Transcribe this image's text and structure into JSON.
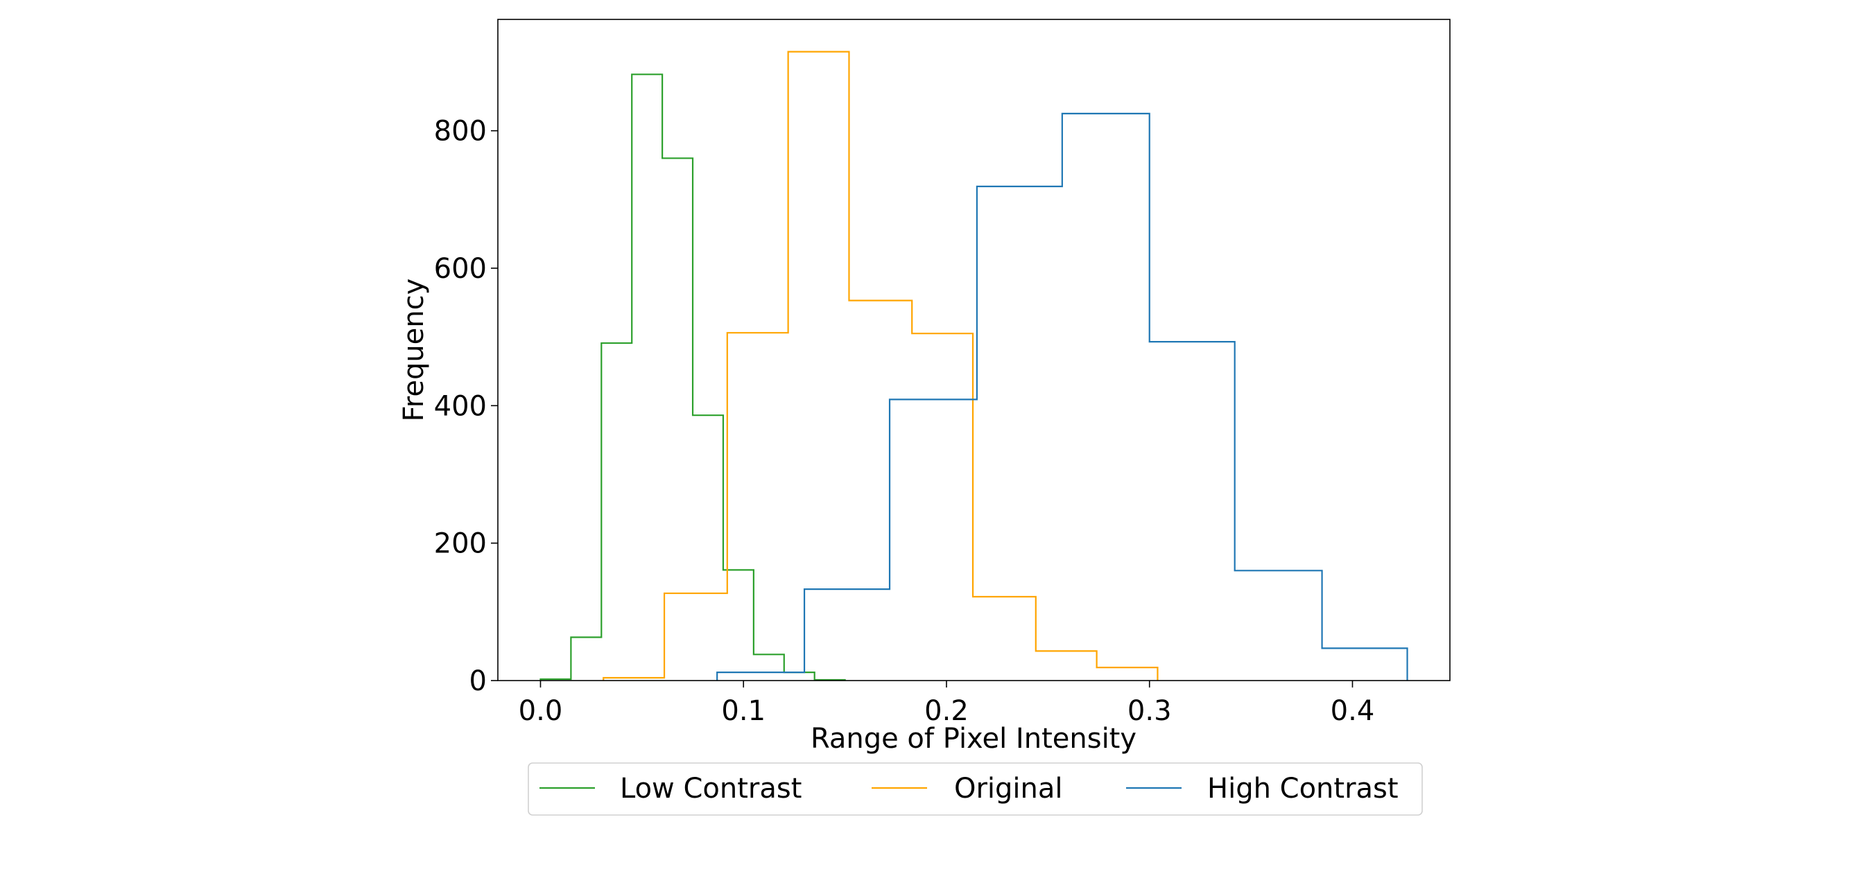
{
  "chart_data": {
    "type": "histogram",
    "xlabel": "Range of Pixel Intensity",
    "ylabel": "Frequency",
    "xlim": [
      -0.021,
      0.448
    ],
    "ylim": [
      0,
      962
    ],
    "xticks": [
      0.0,
      0.1,
      0.2,
      0.3,
      0.4
    ],
    "xtick_labels": [
      "0.0",
      "0.1",
      "0.2",
      "0.3",
      "0.4"
    ],
    "yticks": [
      0,
      200,
      400,
      600,
      800
    ],
    "ytick_labels": [
      "0",
      "200",
      "400",
      "600",
      "800"
    ],
    "grid": false,
    "legend_position": "bottom-center, below axes",
    "series": [
      {
        "name": "Low Contrast",
        "color": "#2ca02c",
        "bin_edges": [
          0.0,
          0.015,
          0.03,
          0.045,
          0.06,
          0.075,
          0.09,
          0.105,
          0.12,
          0.135,
          0.15
        ],
        "counts": [
          2,
          63,
          491,
          882,
          760,
          386,
          161,
          38,
          12,
          1
        ]
      },
      {
        "name": "Original",
        "color": "#ffa500",
        "bin_edges": [
          0.031,
          0.061,
          0.092,
          0.122,
          0.152,
          0.183,
          0.213,
          0.244,
          0.274,
          0.304
        ],
        "counts": [
          4,
          127,
          506,
          915,
          553,
          505,
          122,
          43,
          19
        ]
      },
      {
        "name": "High Contrast",
        "color": "#1f77b4",
        "bin_edges": [
          0.087,
          0.13,
          0.172,
          0.215,
          0.257,
          0.3,
          0.342,
          0.385,
          0.427
        ],
        "counts": [
          12,
          133,
          409,
          719,
          825,
          493,
          160,
          47
        ]
      }
    ]
  }
}
